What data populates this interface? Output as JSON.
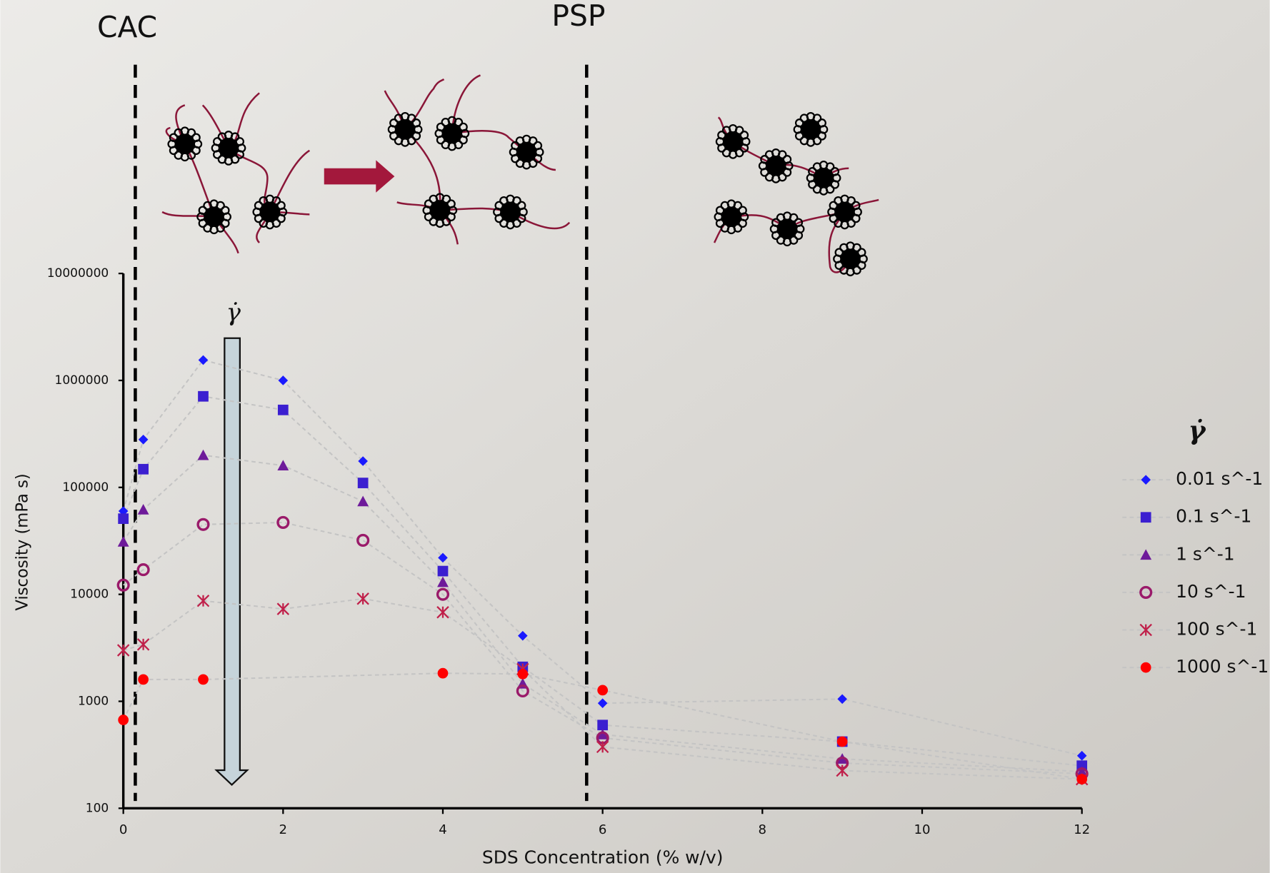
{
  "chart_data": {
    "type": "scatter",
    "ylog": true,
    "grid": false,
    "xlabel": "SDS Concentration (% w/v)",
    "ylabel": "Viscosity (mPa s)",
    "annotations": [
      {
        "text": "CAC",
        "x": 0.15
      },
      {
        "text": "PSP",
        "x": 5.8
      }
    ],
    "arrow_label": "γ̇",
    "legend_title": "γ̇",
    "legend": "right",
    "xlim": [
      0,
      12
    ],
    "xticks": [
      0,
      2,
      4,
      6,
      8,
      10,
      12
    ],
    "ylim": [
      100,
      10000000
    ],
    "yticks": [
      100,
      1000,
      10000,
      100000,
      1000000,
      10000000
    ],
    "x": [
      0,
      0.25,
      1,
      2,
      3,
      4,
      5,
      6,
      9,
      12
    ],
    "series": [
      {
        "name": "0.01 s^-1",
        "color": "#1a1aff",
        "marker": "diamond",
        "values": [
          60000,
          280000,
          1550000,
          1000000,
          176000,
          22000,
          4100,
          960,
          1050,
          310
        ]
      },
      {
        "name": "0.1 s^-1",
        "color": "#3b1fd0",
        "marker": "square",
        "values": [
          51000,
          148000,
          710000,
          530000,
          110000,
          16500,
          2100,
          600,
          420,
          250
        ]
      },
      {
        "name": "1 s^-1",
        "color": "#6e1a9a",
        "marker": "triangle",
        "values": [
          31000,
          62000,
          200000,
          160000,
          74000,
          13000,
          1460,
          490,
          290,
          220
        ]
      },
      {
        "name": "10 s^-1",
        "color": "#9a1a6a",
        "marker": "circle-open",
        "values": [
          12200,
          17000,
          45000,
          47000,
          32000,
          10000,
          1250,
          455,
          265,
          210
        ]
      },
      {
        "name": "100 s^-1",
        "color": "#c0204a",
        "marker": "asterisk",
        "values": [
          3000,
          3400,
          8700,
          7300,
          9100,
          6800,
          2000,
          375,
          225,
          187
        ]
      },
      {
        "name": "1000 s^-1",
        "color": "#ff0000",
        "marker": "circle",
        "x": [
          0,
          0.25,
          1,
          4,
          5,
          6,
          9,
          12
        ],
        "values": [
          670,
          1600,
          1600,
          1830,
          1800,
          1270,
          420,
          187
        ]
      }
    ]
  }
}
